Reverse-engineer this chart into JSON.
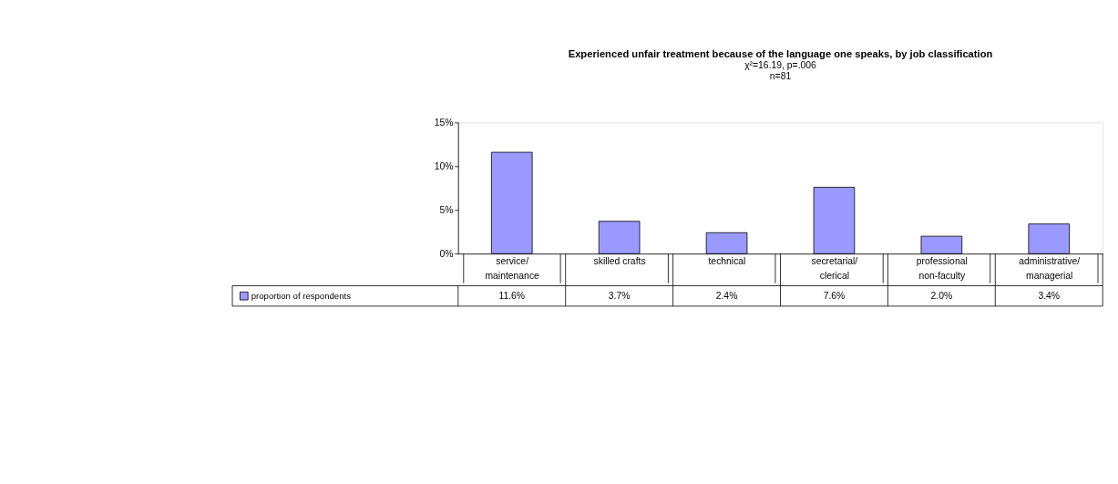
{
  "chart_data": {
    "type": "bar",
    "title": "Experienced unfair treatment because of the language one speaks, by job classification",
    "subtitle": "χ²=16.19, p=.006",
    "annotations": [
      "n=81"
    ],
    "categories": [
      "service/maintenance",
      "skilled crafts",
      "technical",
      "secretarial/clerical",
      "professional non-faculty",
      "administrative/managerial"
    ],
    "series": [
      {
        "name": "proportion of respondents",
        "color": "#9999ff",
        "values": [
          11.6,
          3.7,
          2.4,
          7.6,
          2.0,
          3.4
        ],
        "value_labels": [
          "11.6%",
          "3.7%",
          "2.4%",
          "7.6%",
          "2.0%",
          "3.4%"
        ]
      }
    ],
    "ylim": [
      0,
      15
    ],
    "yticks": [
      {
        "value": 0,
        "label": "0%"
      },
      {
        "value": 5,
        "label": "5%"
      },
      {
        "value": 10,
        "label": "10%"
      },
      {
        "value": 15,
        "label": "15%"
      }
    ],
    "grid": false,
    "legend": "bottom left"
  }
}
